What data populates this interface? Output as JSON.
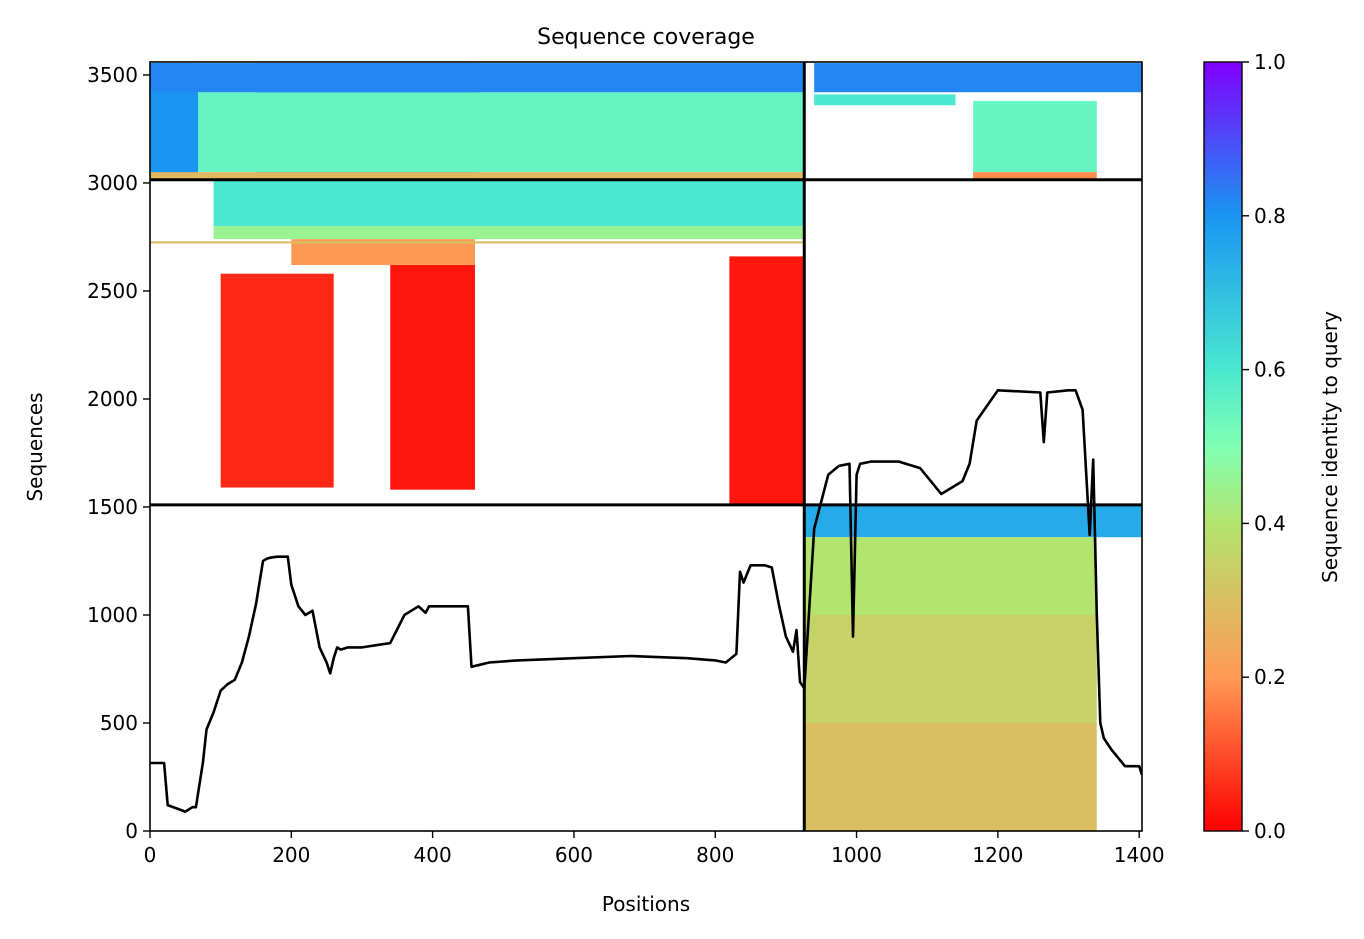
{
  "chart_data": {
    "type": "heatmap",
    "title": "Sequence coverage",
    "xlabel": "Positions",
    "ylabel": "Sequences",
    "xlim": [
      0,
      1404
    ],
    "ylim": [
      0,
      3560
    ],
    "xticks": [
      0,
      200,
      400,
      600,
      800,
      1000,
      1200,
      1400
    ],
    "yticks": [
      0,
      500,
      1000,
      1500,
      2000,
      2500,
      3000,
      3500
    ],
    "colorbar": {
      "label": "Sequence identity to query",
      "range": [
        0,
        1
      ],
      "ticks": [
        "0.0",
        "0.2",
        "0.4",
        "0.6",
        "0.8",
        "1.0"
      ],
      "colormap": "rainbow_r"
    },
    "chain_boundaries": {
      "x": [
        926
      ],
      "y": [
        1510,
        3015
      ]
    },
    "coverage_blocks": [
      {
        "x": [
          150,
          465
        ],
        "y": [
          3020,
          3555
        ],
        "identity": 0.85
      },
      {
        "x": [
          68,
          926
        ],
        "y": [
          3050,
          3420
        ],
        "identity": 0.55
      },
      {
        "x": [
          0,
          68
        ],
        "y": [
          3020,
          3555
        ],
        "identity": 0.8
      },
      {
        "x": [
          0,
          926
        ],
        "y": [
          3420,
          3555
        ],
        "identity": 0.82
      },
      {
        "x": [
          0,
          926
        ],
        "y": [
          3020,
          3050
        ],
        "identity": 0.28
      },
      {
        "x": [
          940,
          1404
        ],
        "y": [
          3420,
          3555
        ],
        "identity": 0.82
      },
      {
        "x": [
          1165,
          1340
        ],
        "y": [
          3050,
          3380
        ],
        "identity": 0.55
      },
      {
        "x": [
          1165,
          1340
        ],
        "y": [
          3020,
          3050
        ],
        "identity": 0.18
      },
      {
        "x": [
          940,
          1140
        ],
        "y": [
          3360,
          3410
        ],
        "identity": 0.6
      },
      {
        "x": [
          90,
          926
        ],
        "y": [
          2800,
          3015
        ],
        "identity": 0.6
      },
      {
        "x": [
          90,
          926
        ],
        "y": [
          2740,
          2800
        ],
        "identity": 0.45
      },
      {
        "x": [
          200,
          460
        ],
        "y": [
          2620,
          2740
        ],
        "identity": 0.2
      },
      {
        "x": [
          0,
          926
        ],
        "y": [
          2720,
          2730
        ],
        "identity": 0.3
      },
      {
        "x": [
          100,
          260
        ],
        "y": [
          1590,
          2580
        ],
        "identity": 0.05
      },
      {
        "x": [
          340,
          460
        ],
        "y": [
          1580,
          2620
        ],
        "identity": 0.03
      },
      {
        "x": [
          820,
          926
        ],
        "y": [
          1510,
          2660
        ],
        "identity": 0.03
      },
      {
        "x": [
          926,
          1404
        ],
        "y": [
          1360,
          1510
        ],
        "identity": 0.75
      },
      {
        "x": [
          926,
          1340
        ],
        "y": [
          1000,
          1360
        ],
        "identity": 0.4
      },
      {
        "x": [
          926,
          1340
        ],
        "y": [
          500,
          1000
        ],
        "identity": 0.35
      },
      {
        "x": [
          926,
          1340
        ],
        "y": [
          0,
          500
        ],
        "identity": 0.3
      }
    ],
    "series": [
      {
        "type": "line",
        "x": [
          0,
          20,
          25,
          50,
          60,
          65,
          75,
          80,
          90,
          100,
          110,
          120,
          130,
          140,
          150,
          160,
          165,
          170,
          180,
          195,
          200,
          210,
          220,
          230,
          240,
          250,
          255,
          260,
          265,
          270,
          280,
          300,
          320,
          340,
          360,
          370,
          380,
          390,
          395,
          400,
          420,
          440,
          450,
          455,
          480,
          520,
          600,
          680,
          760,
          800,
          815,
          830,
          835,
          840,
          850,
          870,
          880,
          890,
          900,
          910,
          915,
          920,
          926,
          940,
          960,
          975,
          990,
          995,
          1000,
          1005,
          1020,
          1060,
          1090,
          1110,
          1120,
          1150,
          1160,
          1170,
          1200,
          1260,
          1265,
          1270,
          1300,
          1310,
          1320,
          1330,
          1335,
          1340,
          1345,
          1350,
          1360,
          1380,
          1400,
          1404
        ],
        "y": [
          315,
          315,
          120,
          90,
          110,
          110,
          320,
          470,
          550,
          650,
          680,
          700,
          780,
          900,
          1050,
          1250,
          1260,
          1265,
          1270,
          1270,
          1140,
          1040,
          1000,
          1020,
          850,
          780,
          730,
          800,
          850,
          840,
          850,
          850,
          860,
          870,
          1000,
          1020,
          1040,
          1010,
          1040,
          1040,
          1040,
          1040,
          1040,
          760,
          780,
          790,
          800,
          810,
          800,
          790,
          780,
          820,
          1200,
          1150,
          1230,
          1230,
          1220,
          1050,
          900,
          830,
          930,
          690,
          660,
          1400,
          1650,
          1690,
          1700,
          900,
          1650,
          1700,
          1710,
          1710,
          1680,
          1600,
          1560,
          1620,
          1700,
          1900,
          2040,
          2030,
          1800,
          2030,
          2040,
          2040,
          1950,
          1370,
          1720,
          1000,
          500,
          430,
          380,
          300,
          300,
          260
        ]
      }
    ]
  }
}
